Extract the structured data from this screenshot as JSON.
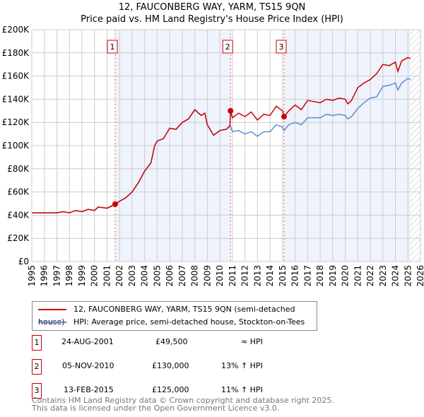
{
  "title": "12, FAUCONBERG WAY, YARM, TS15 9QN",
  "subtitle": "Price paid vs. HM Land Registry's House Price Index (HPI)",
  "chart_data": {
    "type": "line",
    "xlim": [
      1995,
      2026
    ],
    "ylim": [
      0,
      200000
    ],
    "yticks": [
      0,
      20000,
      40000,
      60000,
      80000,
      100000,
      120000,
      140000,
      160000,
      180000,
      200000
    ],
    "ytick_labels": [
      "£0",
      "£20K",
      "£40K",
      "£60K",
      "£80K",
      "£100K",
      "£120K",
      "£140K",
      "£160K",
      "£180K",
      "£200K"
    ],
    "xticks": [
      1995,
      1996,
      1997,
      1998,
      1999,
      2000,
      2001,
      2002,
      2003,
      2004,
      2005,
      2006,
      2007,
      2008,
      2009,
      2010,
      2011,
      2012,
      2013,
      2014,
      2015,
      2016,
      2017,
      2018,
      2019,
      2020,
      2021,
      2022,
      2023,
      2024,
      2025,
      2026
    ],
    "series": [
      {
        "name": "12, FAUCONBERG WAY, YARM, TS15 9QN (semi-detached house)",
        "color": "#cc0000",
        "x": [
          1995,
          1996,
          1997,
          1997.5,
          1998,
          1998.5,
          1999,
          1999.5,
          2000,
          2000.3,
          2001,
          2001.65,
          2002,
          2002.5,
          2003,
          2003.5,
          2004,
          2004.5,
          2004.8,
          2005,
          2005.5,
          2006,
          2006.5,
          2007,
          2007.5,
          2008,
          2008.5,
          2008.8,
          2009,
          2009.5,
          2010,
          2010.5,
          2010.8,
          2010.85,
          2011,
          2011.5,
          2012,
          2012.5,
          2013,
          2013.5,
          2014,
          2014.5,
          2015,
          2015.12,
          2015.5,
          2016,
          2016.5,
          2017,
          2017.5,
          2018,
          2018.5,
          2019,
          2019.5,
          2020,
          2020.2,
          2020.5,
          2021,
          2021.5,
          2022,
          2022.5,
          2023,
          2023.5,
          2024,
          2024.2,
          2024.5,
          2025,
          2025.2
        ],
        "y": [
          42,
          42,
          42,
          43,
          42,
          44,
          43,
          45,
          44,
          47,
          46,
          49.5,
          52,
          55,
          60,
          68,
          78,
          85,
          100,
          104,
          106,
          115,
          114,
          120,
          123,
          131,
          126,
          128,
          118,
          109,
          113,
          114,
          117,
          130,
          124,
          128,
          125,
          129,
          122,
          127,
          126,
          134,
          130,
          125,
          130,
          135,
          131,
          139,
          138,
          137,
          140,
          139,
          141,
          140,
          136,
          139,
          150,
          154,
          157,
          162,
          170,
          169,
          172,
          164,
          173,
          176,
          175
        ]
      },
      {
        "name": "HPI: Average price, semi-detached house, Stockton-on-Tees",
        "color": "#5b8fd0",
        "x": [
          1995,
          1996,
          1997,
          1997.5,
          1998,
          1998.5,
          1999,
          1999.5,
          2000,
          2000.3,
          2001,
          2001.65,
          2002,
          2002.5,
          2003,
          2003.5,
          2004,
          2004.5,
          2004.8,
          2005,
          2005.5,
          2006,
          2006.5,
          2007,
          2007.5,
          2008,
          2008.5,
          2008.8,
          2009,
          2009.5,
          2010,
          2010.5,
          2010.85,
          2011,
          2011.5,
          2012,
          2012.5,
          2013,
          2013.5,
          2014,
          2014.5,
          2015,
          2015.12,
          2015.5,
          2016,
          2016.5,
          2017,
          2017.5,
          2018,
          2018.5,
          2019,
          2019.5,
          2020,
          2020.2,
          2020.5,
          2021,
          2021.5,
          2022,
          2022.5,
          2023,
          2023.5,
          2024,
          2024.2,
          2024.5,
          2025,
          2025.2
        ],
        "y": [
          42,
          42,
          42,
          43,
          42,
          44,
          43,
          45,
          44,
          47,
          46,
          49,
          52,
          55,
          60,
          68,
          78,
          85,
          100,
          104,
          106,
          115,
          114,
          120,
          123,
          131,
          126,
          128,
          118,
          109,
          113,
          114,
          117,
          112,
          113,
          110,
          112,
          108,
          112,
          112,
          118,
          116,
          113,
          118,
          120,
          118,
          124,
          124,
          124,
          127,
          126,
          127,
          126,
          123,
          125,
          132,
          137,
          141,
          142,
          151,
          152,
          154,
          148,
          154,
          158,
          157
        ]
      }
    ],
    "sales": [
      {
        "n": "1",
        "x": 2001.65,
        "price": 49500,
        "date": "24-AUG-2001",
        "price_label": "£49,500",
        "vs": "≈ HPI"
      },
      {
        "n": "2",
        "x": 2010.85,
        "price": 130000,
        "date": "05-NOV-2010",
        "price_label": "£130,000",
        "vs": "13% ↑ HPI"
      },
      {
        "n": "3",
        "x": 2015.12,
        "price": 125000,
        "date": "13-FEB-2015",
        "price_label": "£125,000",
        "vs": "11% ↑ HPI"
      }
    ]
  },
  "legend": {
    "property": "12, FAUCONBERG WAY, YARM, TS15 9QN (semi-detached house)",
    "hpi": "HPI: Average price, semi-detached house, Stockton-on-Tees"
  },
  "footer": {
    "line1": "Contains HM Land Registry data © Crown copyright and database right 2025.",
    "line2": "This data is licensed under the Open Government Licence v3.0."
  }
}
